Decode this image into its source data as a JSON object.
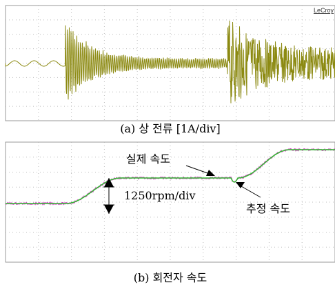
{
  "panels": [
    {
      "brand": "LeCroy",
      "caption": "(a) 상 전류 [1A/div]"
    },
    {
      "labels": [
        "실제 속도",
        "1250rpm/div",
        "추정 속도"
      ],
      "caption": "(b) 회전자 속도"
    }
  ]
}
